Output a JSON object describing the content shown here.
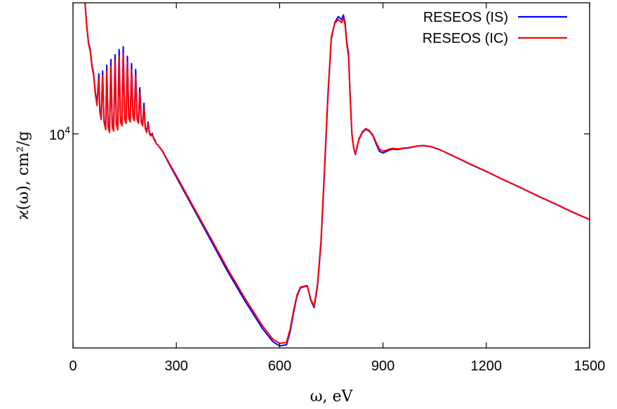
{
  "chart_data": {
    "type": "line",
    "xlabel": "ω, eV",
    "ylabel": "ϰ(ω), cm²/g",
    "xlim": [
      0,
      1500
    ],
    "ylim": [
      2100,
      26000
    ],
    "y_scale": "log",
    "x_ticks": [
      0,
      300,
      600,
      900,
      1200,
      1500
    ],
    "y_tick_value": 10000,
    "y_tick_base": "10",
    "y_tick_exp": "4",
    "grid": false,
    "legend_position": "top-right",
    "series": [
      {
        "name": "RESEOS (IS)",
        "color": "#0000ff",
        "x": [
          35,
          40,
          45,
          50,
          55,
          60,
          65,
          70,
          75,
          78,
          82,
          86,
          90,
          95,
          98,
          102,
          106,
          110,
          114,
          118,
          122,
          126,
          130,
          134,
          138,
          142,
          146,
          150,
          154,
          158,
          162,
          166,
          170,
          174,
          178,
          182,
          186,
          190,
          194,
          198,
          202,
          206,
          210,
          214,
          218,
          222,
          226,
          230,
          234,
          238,
          242,
          246,
          250,
          260,
          280,
          300,
          350,
          400,
          450,
          500,
          550,
          580,
          600,
          620,
          630,
          640,
          650,
          660,
          670,
          680,
          690,
          700,
          710,
          720,
          730,
          740,
          750,
          760,
          770,
          780,
          785,
          790,
          795,
          800,
          805,
          810,
          815,
          820,
          825,
          830,
          840,
          850,
          860,
          870,
          880,
          890,
          900,
          910,
          920,
          930,
          940,
          950,
          960,
          970,
          980,
          990,
          1000,
          1020,
          1040,
          1060,
          1080,
          1100,
          1150,
          1200,
          1250,
          1300,
          1350,
          1400,
          1450,
          1500
        ],
        "y": [
          26000,
          22000,
          19500,
          18500,
          16500,
          15500,
          13500,
          12500,
          15500,
          11800,
          11200,
          15800,
          11000,
          10400,
          16500,
          10600,
          10200,
          17200,
          10600,
          10300,
          17800,
          10800,
          10400,
          18500,
          11000,
          10700,
          18900,
          11200,
          10900,
          17600,
          11300,
          11000,
          16700,
          11400,
          11100,
          16000,
          11200,
          10900,
          14000,
          11000,
          10700,
          12500,
          10500,
          10200,
          10900,
          10100,
          9900,
          10050,
          9700,
          9550,
          9300,
          9250,
          9100,
          8800,
          8000,
          7300,
          5800,
          4600,
          3650,
          2950,
          2420,
          2200,
          2130,
          2150,
          2350,
          2700,
          3050,
          3250,
          3280,
          3300,
          2980,
          2820,
          3300,
          4500,
          7500,
          13000,
          20000,
          22500,
          23500,
          23000,
          23800,
          22500,
          19500,
          18000,
          13000,
          10000,
          9000,
          8600,
          9100,
          9600,
          10100,
          10350,
          10200,
          9900,
          9300,
          8800,
          8700,
          8800,
          8900,
          8950,
          8920,
          8950,
          9000,
          9020,
          9050,
          9100,
          9150,
          9180,
          9100,
          8950,
          8750,
          8550,
          8050,
          7600,
          7150,
          6750,
          6350,
          6000,
          5650,
          5350
        ]
      },
      {
        "name": "RESEOS (IC)",
        "color": "#ff0000",
        "x": [
          35,
          40,
          45,
          50,
          55,
          60,
          65,
          70,
          75,
          78,
          82,
          86,
          90,
          95,
          98,
          102,
          106,
          110,
          114,
          118,
          122,
          126,
          130,
          134,
          138,
          142,
          146,
          150,
          154,
          158,
          162,
          166,
          170,
          174,
          178,
          182,
          186,
          190,
          194,
          198,
          202,
          206,
          210,
          214,
          218,
          222,
          226,
          230,
          234,
          238,
          242,
          246,
          250,
          260,
          280,
          300,
          350,
          400,
          450,
          500,
          550,
          580,
          600,
          620,
          630,
          640,
          650,
          660,
          670,
          680,
          690,
          700,
          710,
          720,
          730,
          740,
          750,
          760,
          770,
          780,
          785,
          790,
          795,
          800,
          805,
          810,
          815,
          820,
          825,
          830,
          840,
          850,
          860,
          870,
          880,
          890,
          900,
          910,
          920,
          930,
          940,
          950,
          960,
          970,
          980,
          990,
          1000,
          1020,
          1040,
          1060,
          1080,
          1100,
          1150,
          1200,
          1250,
          1300,
          1350,
          1400,
          1450,
          1500
        ],
        "y": [
          26000,
          21800,
          19300,
          18300,
          16300,
          15300,
          13300,
          12300,
          15000,
          11700,
          11100,
          15300,
          10900,
          10300,
          15800,
          10500,
          10100,
          16400,
          10500,
          10200,
          17000,
          10700,
          10300,
          17600,
          10900,
          10600,
          18000,
          11100,
          10800,
          16900,
          11200,
          10900,
          16000,
          11300,
          11000,
          15300,
          11100,
          10800,
          13500,
          10900,
          10600,
          12100,
          10400,
          10100,
          10800,
          10000,
          9850,
          10000,
          9650,
          9500,
          9300,
          9250,
          9120,
          8830,
          8050,
          7380,
          5870,
          4680,
          3720,
          3010,
          2470,
          2240,
          2170,
          2190,
          2400,
          2740,
          3080,
          3270,
          3290,
          3310,
          3000,
          2850,
          3350,
          4600,
          7700,
          13300,
          20300,
          22400,
          23000,
          22500,
          23300,
          22100,
          19200,
          17600,
          12800,
          9900,
          9000,
          8650,
          9150,
          9650,
          10150,
          10400,
          10250,
          9950,
          9400,
          8950,
          8820,
          8880,
          8960,
          9000,
          8960,
          8980,
          9020,
          9040,
          9070,
          9110,
          9160,
          9190,
          9110,
          8960,
          8760,
          8560,
          8060,
          7610,
          7160,
          6760,
          6360,
          6010,
          5660,
          5360
        ]
      }
    ]
  }
}
